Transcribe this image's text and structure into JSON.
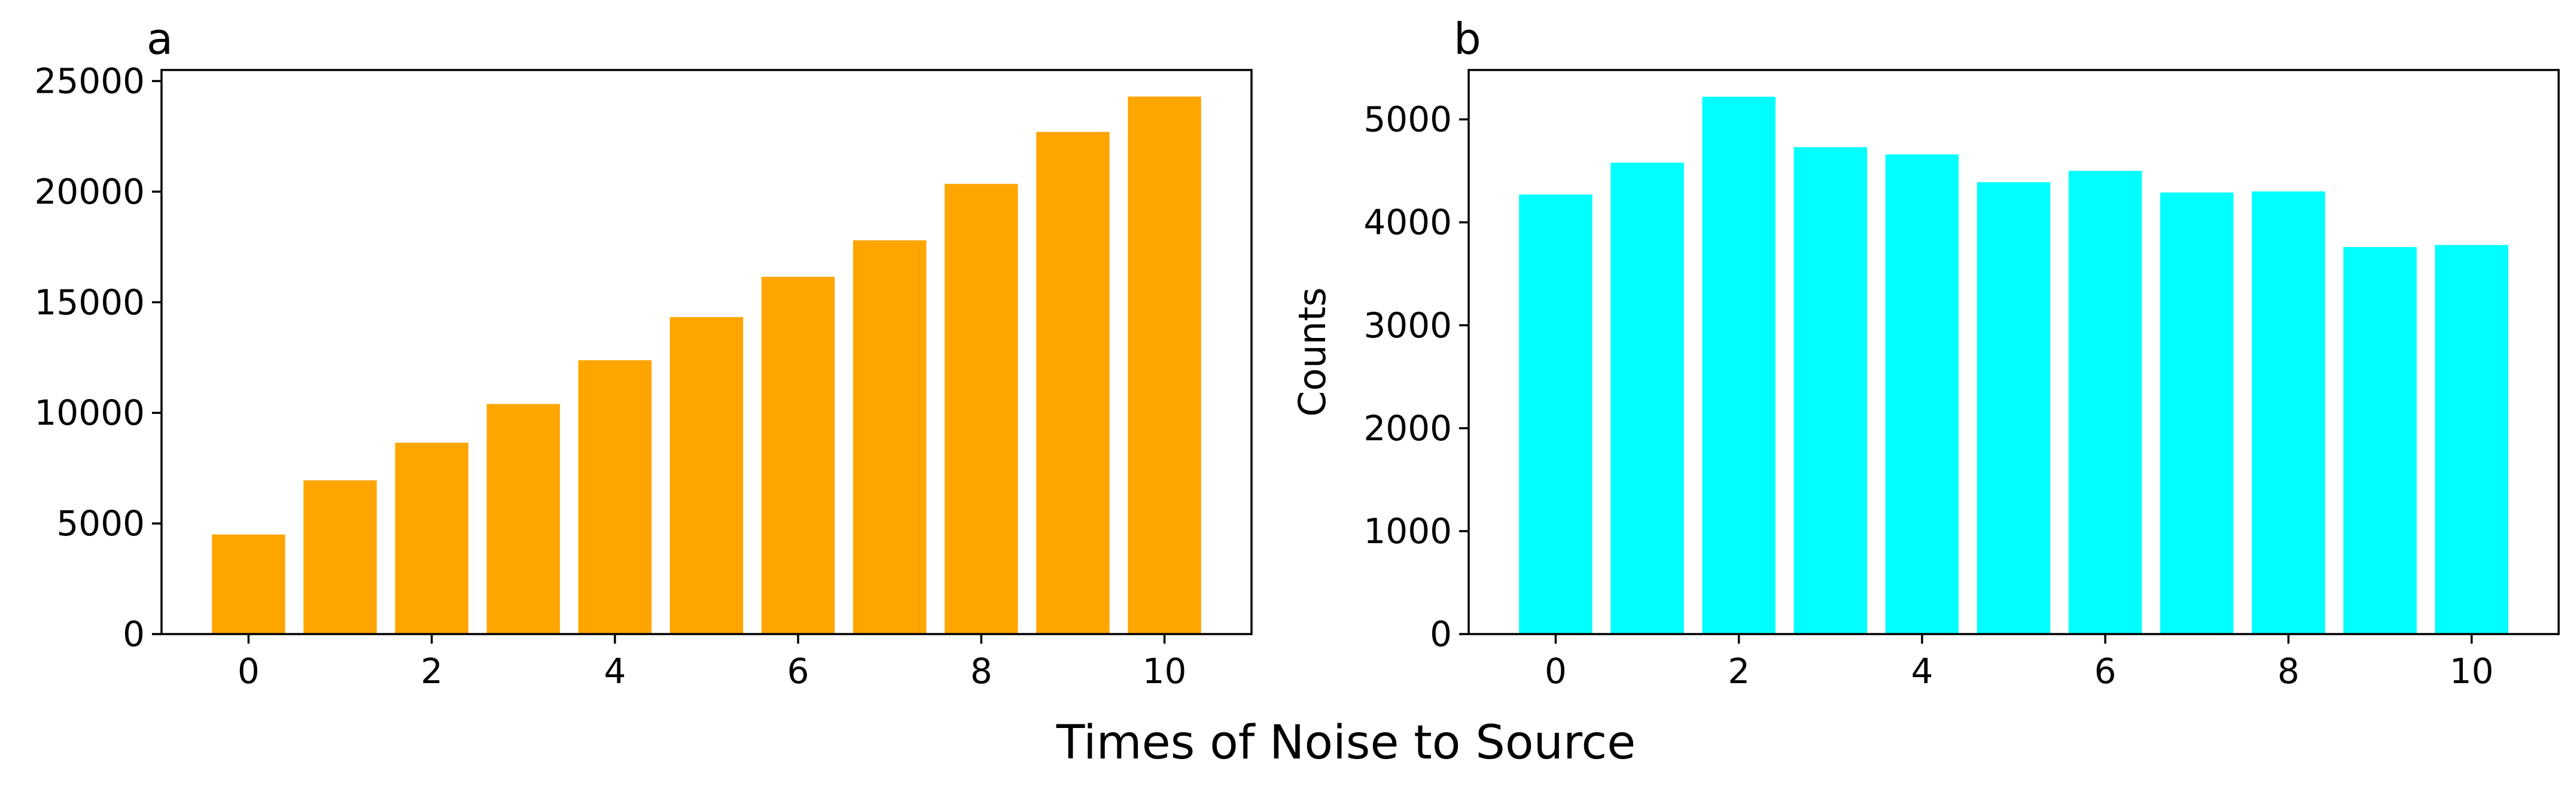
{
  "figure": {
    "xlabel": "Times of Noise to Source"
  },
  "chart_data": [
    {
      "type": "bar",
      "panel_label": "a",
      "title": "",
      "xlabel": "",
      "ylabel": "",
      "x": [
        0,
        1,
        2,
        3,
        4,
        5,
        6,
        7,
        8,
        9,
        10
      ],
      "values": [
        4500,
        6950,
        8650,
        10400,
        12380,
        14330,
        16150,
        17800,
        20350,
        22700,
        24300
      ],
      "xlim": [
        -0.95,
        10.95
      ],
      "ylim": [
        0,
        25500
      ],
      "xticks": [
        0,
        2,
        4,
        6,
        8,
        10
      ],
      "yticks": [
        0,
        5000,
        10000,
        15000,
        20000,
        25000
      ],
      "color": "#FFA500",
      "grid": false,
      "legend": "none"
    },
    {
      "type": "bar",
      "panel_label": "b",
      "title": "",
      "xlabel": "",
      "ylabel": "Counts",
      "x": [
        0,
        1,
        2,
        3,
        4,
        5,
        6,
        7,
        8,
        9,
        10
      ],
      "values": [
        4270,
        4580,
        5220,
        4730,
        4660,
        4390,
        4500,
        4290,
        4300,
        3760,
        3780
      ],
      "xlim": [
        -0.95,
        10.95
      ],
      "ylim": [
        0,
        5480
      ],
      "xticks": [
        0,
        2,
        4,
        6,
        8,
        10
      ],
      "yticks": [
        0,
        1000,
        2000,
        3000,
        4000,
        5000
      ],
      "color": "#00FFFF",
      "grid": false,
      "legend": "none"
    }
  ]
}
